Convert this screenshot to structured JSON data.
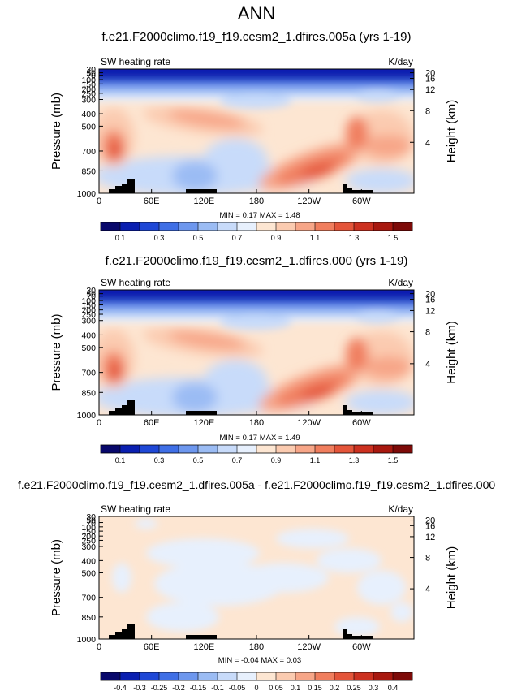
{
  "page_title": "ANN",
  "chart_data": [
    {
      "type": "heatmap",
      "title": "f.e21.F2000climo.f19_f19.cesm2_1.dfires.005a (yrs 1-19)",
      "left_label": "SW heating rate",
      "right_label": "K/day",
      "ylabel": "Pressure (mb)",
      "ylabel_right": "Height (km)",
      "x_ticks": [
        "0",
        "60E",
        "120E",
        "180",
        "120W",
        "60W"
      ],
      "y_ticks": [
        "30",
        "50",
        "70",
        "100",
        "150",
        "200",
        "250",
        "300",
        "400",
        "500",
        "700",
        "850",
        "1000"
      ],
      "y_ticks_right": [
        "20",
        "16",
        "12",
        "8",
        "4"
      ],
      "stats": {
        "min_label": "MIN =",
        "min": "0.17",
        "max_label": "MAX =",
        "max": "1.48"
      },
      "colorbar_labels": [
        "0.1",
        "0.3",
        "0.5",
        "0.7",
        "0.9",
        "1.1",
        "1.3",
        "1.5"
      ],
      "kind": "abs"
    },
    {
      "type": "heatmap",
      "title": "f.e21.F2000climo.f19_f19.cesm2_1.dfires.000 (yrs 1-19)",
      "left_label": "SW heating rate",
      "right_label": "K/day",
      "ylabel": "Pressure (mb)",
      "ylabel_right": "Height (km)",
      "x_ticks": [
        "0",
        "60E",
        "120E",
        "180",
        "120W",
        "60W"
      ],
      "y_ticks": [
        "30",
        "50",
        "70",
        "100",
        "150",
        "200",
        "250",
        "300",
        "400",
        "500",
        "700",
        "850",
        "1000"
      ],
      "y_ticks_right": [
        "20",
        "16",
        "12",
        "8",
        "4"
      ],
      "stats": {
        "min_label": "MIN =",
        "min": "0.17",
        "max_label": "MAX =",
        "max": "1.49"
      },
      "colorbar_labels": [
        "0.1",
        "0.3",
        "0.5",
        "0.7",
        "0.9",
        "1.1",
        "1.3",
        "1.5"
      ],
      "kind": "abs"
    },
    {
      "type": "heatmap",
      "title": "f.e21.F2000climo.f19_f19.cesm2_1.dfires.005a - f.e21.F2000climo.f19_f19.cesm2_1.dfires.000",
      "left_label": "SW heating rate",
      "right_label": "K/day",
      "ylabel": "Pressure (mb)",
      "ylabel_right": "Height (km)",
      "x_ticks": [
        "0",
        "60E",
        "120E",
        "180",
        "120W",
        "60W"
      ],
      "y_ticks": [
        "30",
        "50",
        "70",
        "100",
        "150",
        "200",
        "250",
        "300",
        "400",
        "500",
        "700",
        "850",
        "1000"
      ],
      "y_ticks_right": [
        "20",
        "16",
        "12",
        "8",
        "4"
      ],
      "stats": {
        "min_label": "MIN =",
        "min": "-0.04",
        "max_label": "MAX =",
        "max": "0.03"
      },
      "colorbar_labels": [
        "-0.4",
        "-0.3",
        "-0.25",
        "-0.2",
        "-0.15",
        "-0.1",
        "-0.05",
        "0",
        "0.05",
        "0.1",
        "0.15",
        "0.2",
        "0.25",
        "0.3",
        "0.4"
      ],
      "kind": "diff"
    }
  ],
  "palette": [
    "#08086b",
    "#0a1fb0",
    "#1f48d6",
    "#3f6fe6",
    "#6d97ee",
    "#9bbcf4",
    "#c8dbfa",
    "#e7f0fd",
    "#fde6d2",
    "#fbcbb0",
    "#f7a688",
    "#f07e5e",
    "#e4553a",
    "#cc3120",
    "#a8180f",
    "#7d0a08"
  ]
}
